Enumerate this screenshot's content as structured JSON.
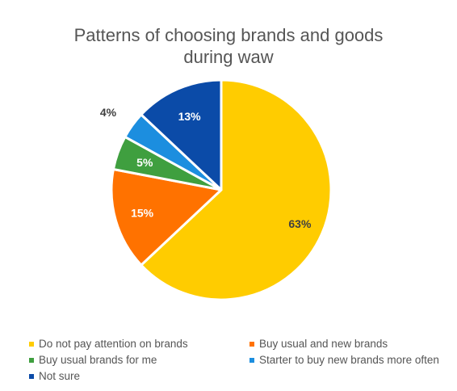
{
  "chart_data": {
    "type": "pie",
    "title_line1": "Patterns of choosing brands and goods",
    "title_line2": "during waw",
    "slices": [
      {
        "name": "Do not pay attention on brands",
        "value": 63,
        "label": "63%",
        "color": "#FFCC00"
      },
      {
        "name": "Buy usual and new brands",
        "value": 15,
        "label": "15%",
        "color": "#FF7200"
      },
      {
        "name": "Buy usual brands for me",
        "value": 5,
        "label": "5%",
        "color": "#3F9F3F"
      },
      {
        "name": "Starter to buy new brands more often",
        "value": 4,
        "label": "4%",
        "color": "#1C8EDF"
      },
      {
        "name": "Not sure",
        "value": 13,
        "label": "13%",
        "color": "#0B4BA8"
      }
    ],
    "legend_position": "bottom"
  }
}
